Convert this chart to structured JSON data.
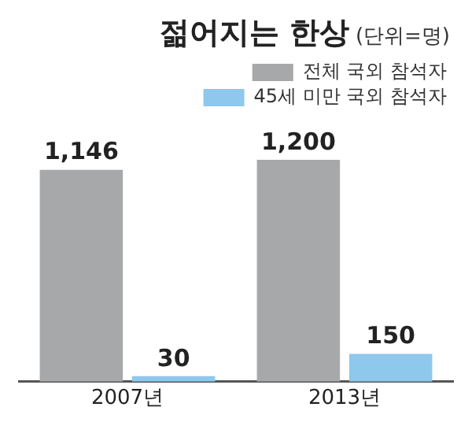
{
  "chart_data": {
    "type": "bar",
    "title": "젊어지는 한상",
    "subtitle": "(단위=명)",
    "categories": [
      "2007년",
      "2013년"
    ],
    "series": [
      {
        "name": "전체 국외 참석자",
        "color": "#a7a8aa",
        "values": [
          1146,
          1200
        ],
        "value_labels": [
          "1,146",
          "1,200"
        ]
      },
      {
        "name": "45세 미만 국외 참석자",
        "color": "#8ec8ec",
        "values": [
          30,
          150
        ],
        "value_labels": [
          "30",
          "150"
        ]
      }
    ],
    "legend": "top right",
    "grid": false,
    "tick_labels": "x"
  }
}
